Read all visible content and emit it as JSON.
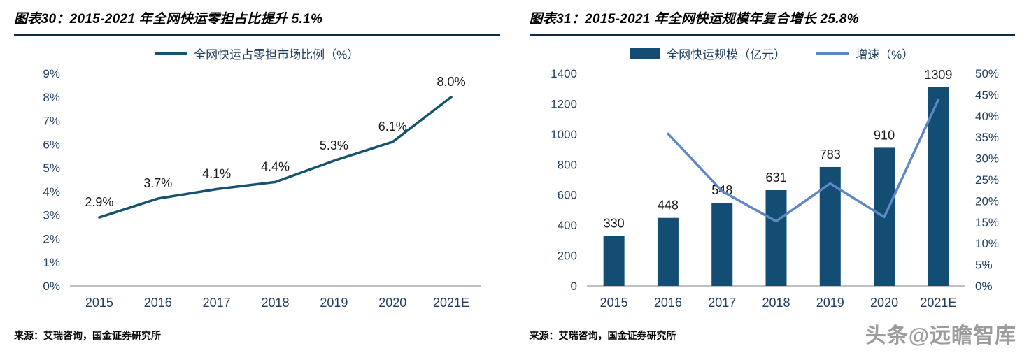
{
  "colors": {
    "title_underline": "#0d2b4b",
    "navy_line": "#15536f",
    "bar": "#134d74",
    "growth_line": "#5f86c5",
    "axis_text": "#1f3c5e",
    "data_label_text": "#1a1a1a",
    "axis_line": "#808080",
    "watermark_text": "#9c9c9c"
  },
  "watermark": {
    "text": "头条@远瞻智库"
  },
  "chart_data": [
    {
      "id": "chart30",
      "type": "line",
      "title": "图表30：2015-2021 年全网快运零担占比提升 5.1%",
      "source": "来源：艾瑞咨询，国金证券研究所",
      "categories": [
        "2015",
        "2016",
        "2017",
        "2018",
        "2019",
        "2020",
        "2021E"
      ],
      "series": [
        {
          "name": "全网快运占零担市场比例（%）",
          "values": [
            2.9,
            3.7,
            4.1,
            4.4,
            5.3,
            6.1,
            8.0
          ]
        }
      ],
      "data_labels": [
        "2.9%",
        "3.7%",
        "4.1%",
        "4.4%",
        "5.3%",
        "6.1%",
        "8.0%"
      ],
      "ylim": [
        0,
        9
      ],
      "ytick_step": 1,
      "ytick_suffix": "%",
      "grid": false,
      "legend_position": "top"
    },
    {
      "id": "chart31",
      "type": "bar",
      "title": "图表31：2015-2021 年全网快运规模年复合增长 25.8%",
      "source": "来源：艾瑞咨询，国金证券研究所",
      "categories": [
        "2015",
        "2016",
        "2017",
        "2018",
        "2019",
        "2020",
        "2021E"
      ],
      "series": [
        {
          "name": "全网快运规模（亿元）",
          "type": "bar",
          "axis": "left",
          "values": [
            330,
            448,
            548,
            631,
            783,
            910,
            1309
          ]
        },
        {
          "name": "增速（%）",
          "type": "line",
          "axis": "right",
          "values": [
            null,
            35.8,
            22.3,
            15.2,
            24.1,
            16.2,
            43.8
          ]
        }
      ],
      "bar_labels": [
        "330",
        "448",
        "548",
        "631",
        "783",
        "910",
        "1309"
      ],
      "left_ylim": [
        0,
        1400
      ],
      "left_step": 200,
      "right_ylim": [
        0,
        50
      ],
      "right_step": 5,
      "right_suffix": "%",
      "grid": false,
      "legend_position": "top"
    }
  ]
}
